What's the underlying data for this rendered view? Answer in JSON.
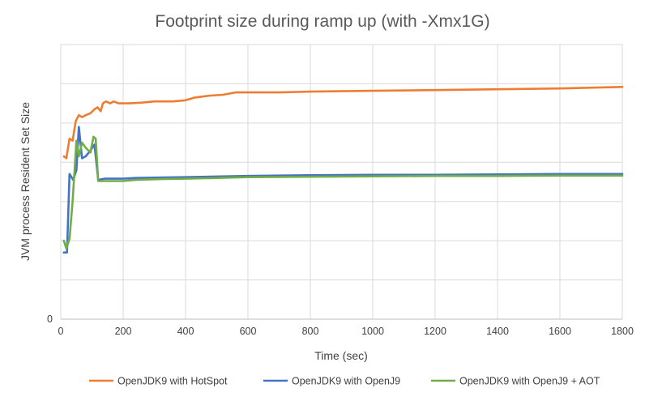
{
  "chart_data": {
    "type": "line",
    "title": "Footprint size during ramp up (with -Xmx1G)",
    "xlabel": "Time (sec)",
    "ylabel": "JVM process Resident Set Size",
    "xlim": [
      0,
      1800
    ],
    "ylim": [
      0,
      7
    ],
    "x_ticks": [
      "0",
      "200",
      "400",
      "600",
      "800",
      "1000",
      "1200",
      "1400",
      "1600",
      "1800"
    ],
    "y_ticks": [
      "0"
    ],
    "grid": "vertical and horizontal",
    "legend_position": "bottom",
    "series": [
      {
        "name": "OpenJDK9 with HotSpot",
        "color": "#ED7D31",
        "points": [
          [
            10,
            4.15
          ],
          [
            18,
            4.1
          ],
          [
            28,
            4.6
          ],
          [
            38,
            4.55
          ],
          [
            48,
            5.05
          ],
          [
            58,
            5.2
          ],
          [
            68,
            5.15
          ],
          [
            80,
            5.2
          ],
          [
            95,
            5.25
          ],
          [
            108,
            5.35
          ],
          [
            118,
            5.4
          ],
          [
            128,
            5.3
          ],
          [
            135,
            5.5
          ],
          [
            145,
            5.55
          ],
          [
            158,
            5.5
          ],
          [
            170,
            5.55
          ],
          [
            185,
            5.5
          ],
          [
            220,
            5.5
          ],
          [
            260,
            5.52
          ],
          [
            300,
            5.55
          ],
          [
            360,
            5.55
          ],
          [
            400,
            5.58
          ],
          [
            430,
            5.65
          ],
          [
            480,
            5.7
          ],
          [
            520,
            5.72
          ],
          [
            560,
            5.78
          ],
          [
            700,
            5.78
          ],
          [
            800,
            5.8
          ],
          [
            1000,
            5.82
          ],
          [
            1200,
            5.84
          ],
          [
            1400,
            5.86
          ],
          [
            1600,
            5.88
          ],
          [
            1800,
            5.92
          ]
        ]
      },
      {
        "name": "OpenJDK9 with OpenJ9",
        "color": "#4472C4",
        "points": [
          [
            10,
            1.7
          ],
          [
            20,
            1.7
          ],
          [
            28,
            3.7
          ],
          [
            40,
            3.55
          ],
          [
            50,
            3.8
          ],
          [
            58,
            4.9
          ],
          [
            68,
            4.1
          ],
          [
            80,
            4.15
          ],
          [
            95,
            4.3
          ],
          [
            108,
            4.45
          ],
          [
            120,
            3.55
          ],
          [
            140,
            3.58
          ],
          [
            200,
            3.58
          ],
          [
            240,
            3.6
          ],
          [
            400,
            3.62
          ],
          [
            600,
            3.65
          ],
          [
            800,
            3.67
          ],
          [
            1000,
            3.68
          ],
          [
            1200,
            3.68
          ],
          [
            1400,
            3.69
          ],
          [
            1600,
            3.7
          ],
          [
            1800,
            3.7
          ]
        ]
      },
      {
        "name": "OpenJDK9 with OpenJ9 + AOT",
        "color": "#70AD47",
        "points": [
          [
            10,
            2.0
          ],
          [
            18,
            1.8
          ],
          [
            28,
            2.05
          ],
          [
            38,
            3.0
          ],
          [
            50,
            4.55
          ],
          [
            58,
            4.15
          ],
          [
            68,
            4.5
          ],
          [
            82,
            4.35
          ],
          [
            95,
            4.25
          ],
          [
            105,
            4.65
          ],
          [
            112,
            4.6
          ],
          [
            120,
            3.52
          ],
          [
            140,
            3.52
          ],
          [
            200,
            3.52
          ],
          [
            240,
            3.55
          ],
          [
            320,
            3.57
          ],
          [
            400,
            3.58
          ],
          [
            500,
            3.6
          ],
          [
            600,
            3.62
          ],
          [
            800,
            3.63
          ],
          [
            1000,
            3.64
          ],
          [
            1200,
            3.65
          ],
          [
            1400,
            3.65
          ],
          [
            1600,
            3.66
          ],
          [
            1800,
            3.66
          ]
        ]
      }
    ]
  }
}
